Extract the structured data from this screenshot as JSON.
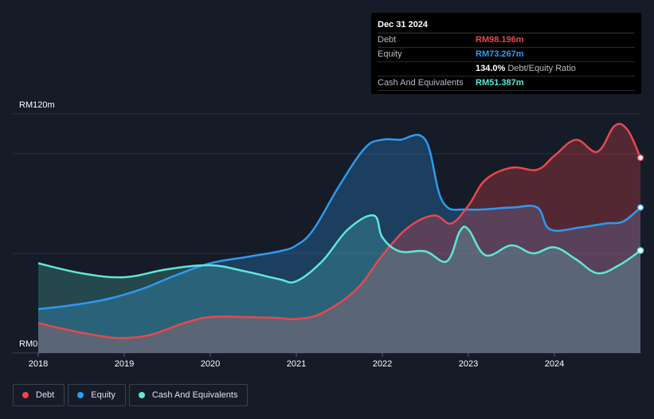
{
  "tooltip": {
    "date": "Dec 31 2024",
    "rows": [
      {
        "label": "Debt",
        "value": "RM98.196m",
        "color": "#e8484f",
        "sub": ""
      },
      {
        "label": "Equity",
        "value": "RM73.267m",
        "color": "#2d9bf0",
        "sub": ""
      },
      {
        "label": "",
        "value": "134.0%",
        "color": "#ffffff",
        "sub": "Debt/Equity Ratio"
      },
      {
        "label": "Cash And Equivalents",
        "value": "RM51.387m",
        "color": "#5ee8d6",
        "sub": ""
      }
    ]
  },
  "legend": [
    {
      "label": "Debt",
      "color": "#e8484f"
    },
    {
      "label": "Equity",
      "color": "#2d9bf0"
    },
    {
      "label": "Cash And Equivalents",
      "color": "#5ee8d6"
    }
  ],
  "chart_data": {
    "type": "area",
    "title": "",
    "xlabel": "",
    "ylabel": "",
    "y_top_label": "RM120m",
    "y_bottom_label": "RM0",
    "ylim": [
      0,
      120
    ],
    "xlim": [
      2018,
      2025
    ],
    "x_ticks": [
      2018,
      2019,
      2020,
      2021,
      2022,
      2023,
      2024
    ],
    "x_tick_labels": [
      "2018",
      "2019",
      "2020",
      "2021",
      "2022",
      "2023",
      "2024"
    ],
    "series": [
      {
        "name": "Equity",
        "color": "#2d9bf0",
        "x": [
          2018.0,
          2018.4,
          2018.8,
          2019.2,
          2019.6,
          2020.0,
          2020.4,
          2020.8,
          2021.0,
          2021.2,
          2021.5,
          2021.8,
          2022.0,
          2022.2,
          2022.5,
          2022.7,
          2023.0,
          2023.5,
          2023.8,
          2023.95,
          2024.3,
          2024.6,
          2024.8,
          2025.0
        ],
        "y": [
          22,
          24,
          27,
          32,
          39,
          45,
          48,
          51,
          54,
          62,
          84,
          103,
          107,
          107,
          107,
          76,
          72,
          73,
          73,
          62,
          63,
          65,
          66,
          73
        ]
      },
      {
        "name": "Debt",
        "color": "#e8484f",
        "x": [
          2018.0,
          2018.4,
          2018.8,
          2019.0,
          2019.3,
          2019.7,
          2020.0,
          2020.4,
          2020.8,
          2021.0,
          2021.3,
          2021.7,
          2022.0,
          2022.3,
          2022.6,
          2022.8,
          2023.0,
          2023.2,
          2023.5,
          2023.8,
          2024.0,
          2024.25,
          2024.5,
          2024.7,
          2024.85,
          2025.0
        ],
        "y": [
          15,
          11,
          8,
          7.5,
          9,
          15,
          18,
          18,
          17.5,
          17,
          20,
          32,
          49,
          63,
          69,
          65,
          74,
          87,
          93,
          92,
          99,
          107,
          101,
          114,
          112,
          98
        ]
      },
      {
        "name": "Cash And Equivalents",
        "color": "#5ee8d6",
        "x": [
          2018.0,
          2018.5,
          2019.0,
          2019.5,
          2020.0,
          2020.4,
          2020.8,
          2021.0,
          2021.3,
          2021.6,
          2021.9,
          2022.0,
          2022.2,
          2022.5,
          2022.75,
          2022.9,
          2023.0,
          2023.2,
          2023.5,
          2023.75,
          2024.0,
          2024.25,
          2024.5,
          2024.75,
          2025.0
        ],
        "y": [
          45,
          40,
          38,
          42,
          44,
          41,
          37,
          36,
          46,
          62,
          69,
          58,
          51,
          51,
          46,
          61,
          62,
          49,
          54,
          50,
          53,
          47,
          40,
          44,
          51.387
        ]
      }
    ]
  }
}
